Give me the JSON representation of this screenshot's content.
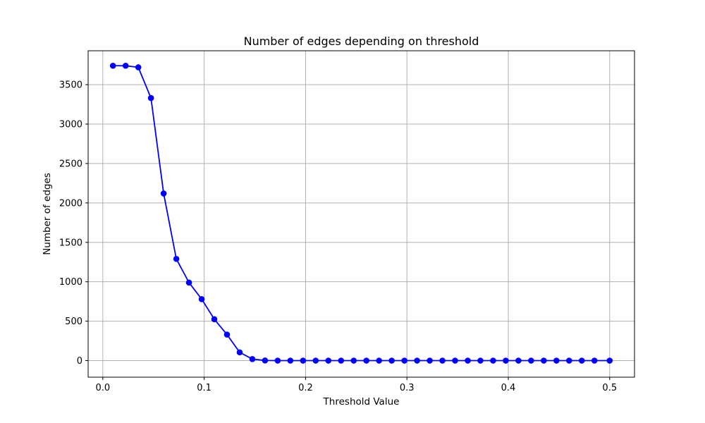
{
  "chart_data": {
    "type": "line",
    "title": "Number of edges depending on threshold",
    "xlabel": "Threshold Value",
    "ylabel": "Number of edges",
    "xlim": [
      -0.0145,
      0.5245
    ],
    "ylim": [
      -210,
      3930
    ],
    "xticks": [
      0.0,
      0.1,
      0.2,
      0.3,
      0.4,
      0.5
    ],
    "xtick_labels": [
      "0.0",
      "0.1",
      "0.2",
      "0.3",
      "0.4",
      "0.5"
    ],
    "yticks": [
      0,
      500,
      1000,
      1500,
      2000,
      2500,
      3000,
      3500
    ],
    "ytick_labels": [
      "0",
      "500",
      "1000",
      "1500",
      "2000",
      "2500",
      "3000",
      "3500"
    ],
    "grid": true,
    "color": "#0000ff",
    "series": [
      {
        "x": [
          0.01,
          0.0225,
          0.035,
          0.0475,
          0.06,
          0.0725,
          0.085,
          0.0975,
          0.11,
          0.1225,
          0.135,
          0.1475,
          0.16,
          0.1725,
          0.185,
          0.1975,
          0.21,
          0.2225,
          0.235,
          0.2475,
          0.26,
          0.2725,
          0.285,
          0.2975,
          0.31,
          0.3225,
          0.335,
          0.3475,
          0.36,
          0.3725,
          0.385,
          0.3975,
          0.41,
          0.4225,
          0.435,
          0.4475,
          0.46,
          0.4725,
          0.485,
          0.5
        ],
        "values": [
          3740,
          3740,
          3720,
          3330,
          2120,
          1290,
          990,
          780,
          525,
          330,
          105,
          20,
          2,
          0,
          0,
          0,
          0,
          0,
          0,
          0,
          0,
          0,
          0,
          0,
          0,
          0,
          0,
          0,
          0,
          0,
          0,
          0,
          0,
          0,
          0,
          0,
          0,
          0,
          0,
          0
        ]
      }
    ]
  }
}
